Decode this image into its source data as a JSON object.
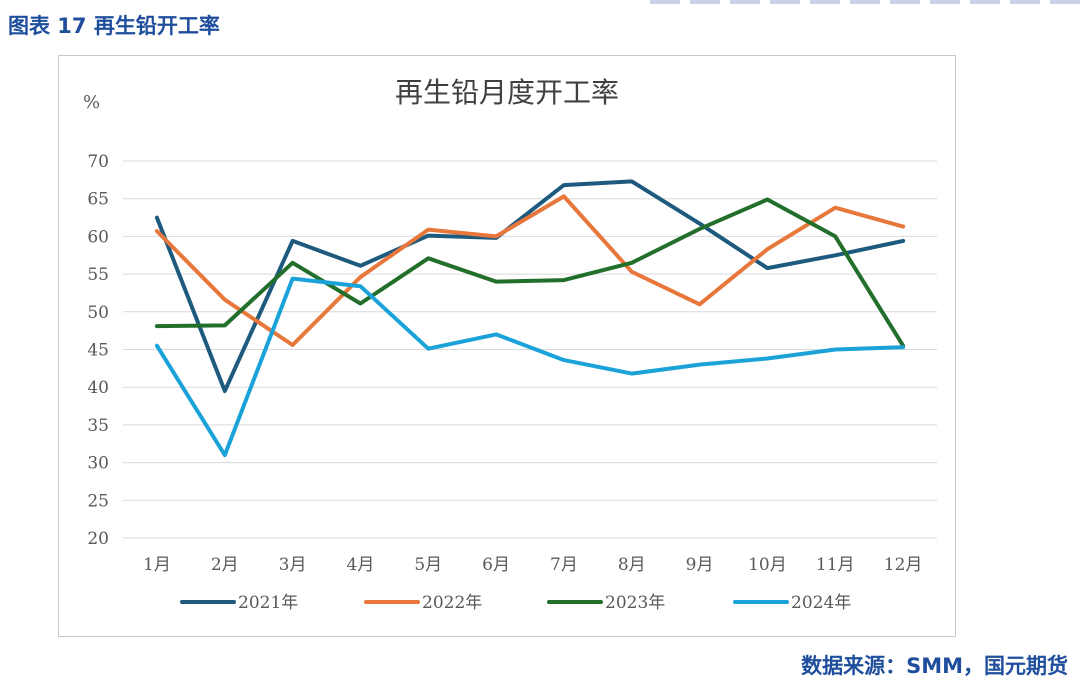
{
  "figure_caption": "图表 17 再生铅开工率",
  "source_text": "数据来源：SMM，国元期货",
  "chart_data": {
    "type": "line",
    "title": "再生铅月度开工率",
    "ylabel": "%",
    "xlabel": "",
    "ylim": [
      20,
      70
    ],
    "yticks": [
      20,
      25,
      30,
      35,
      40,
      45,
      50,
      55,
      60,
      65,
      70
    ],
    "categories": [
      "1月",
      "2月",
      "3月",
      "4月",
      "5月",
      "6月",
      "7月",
      "8月",
      "9月",
      "10月",
      "11月",
      "12月"
    ],
    "grid": true,
    "legend_position": "bottom",
    "series": [
      {
        "name": "2021年",
        "color": "#1e5a7d",
        "values": [
          62.5,
          39.5,
          59.4,
          56.1,
          60.1,
          59.8,
          66.8,
          67.3,
          61.7,
          55.8,
          57.5,
          59.4
        ]
      },
      {
        "name": "2022年",
        "color": "#e8773b",
        "values": [
          60.7,
          51.6,
          45.6,
          54.6,
          60.9,
          60.0,
          65.3,
          55.3,
          51.0,
          58.3,
          63.8,
          61.3
        ]
      },
      {
        "name": "2023年",
        "color": "#226f2b",
        "values": [
          48.1,
          48.2,
          56.5,
          51.1,
          57.1,
          54.0,
          54.2,
          56.5,
          61.0,
          64.9,
          60.0,
          45.5
        ]
      },
      {
        "name": "2024年",
        "color": "#1ba3d9",
        "values": [
          45.5,
          31.0,
          54.4,
          53.4,
          45.1,
          47.0,
          43.6,
          41.8,
          43.0,
          43.8,
          45.0,
          45.3
        ]
      }
    ]
  }
}
